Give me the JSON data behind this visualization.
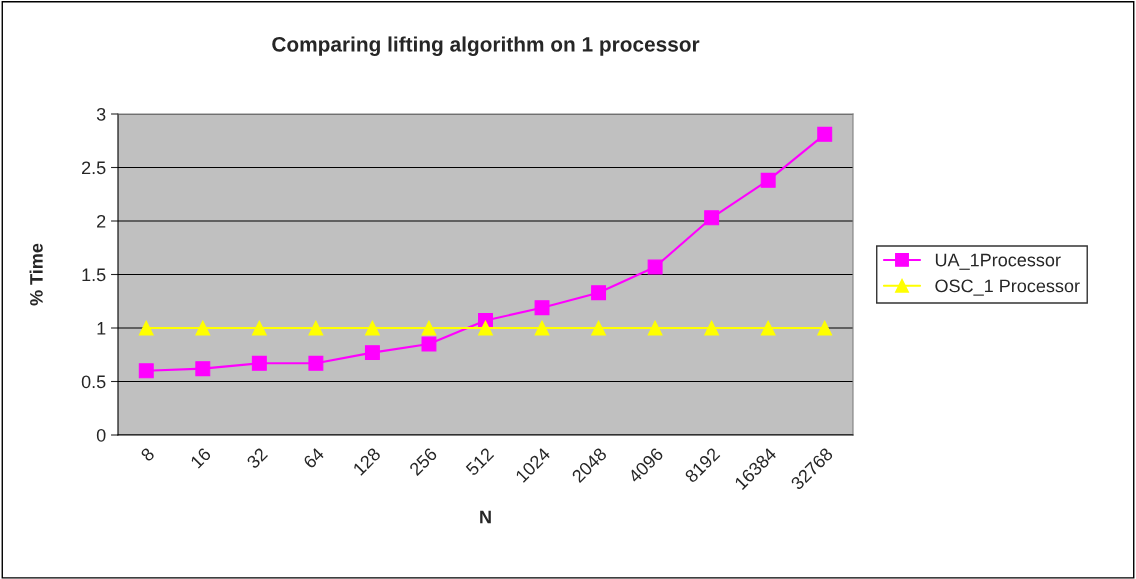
{
  "chart_data": {
    "type": "line",
    "title": "Comparing lifting algorithm on 1 processor",
    "xlabel": "N",
    "ylabel": "% Time",
    "categories": [
      "8",
      "16",
      "32",
      "64",
      "128",
      "256",
      "512",
      "1024",
      "2048",
      "4096",
      "8192",
      "16384",
      "32768"
    ],
    "series": [
      {
        "name": "UA_1Processor",
        "color": "#ff00ff",
        "marker": "square",
        "values": [
          0.6,
          0.62,
          0.67,
          0.67,
          0.77,
          0.85,
          1.07,
          1.19,
          1.33,
          1.57,
          2.03,
          2.38,
          2.81
        ]
      },
      {
        "name": "OSC_1 Processor",
        "color": "#ffff00",
        "marker": "triangle",
        "values": [
          1,
          1,
          1,
          1,
          1,
          1,
          1,
          1,
          1,
          1,
          1,
          1,
          1
        ]
      }
    ],
    "ylim": [
      0,
      3
    ],
    "yticks": [
      0,
      0.5,
      1,
      1.5,
      2,
      2.5,
      3
    ],
    "grid": "y",
    "legend": "right",
    "line_style": "solid"
  }
}
